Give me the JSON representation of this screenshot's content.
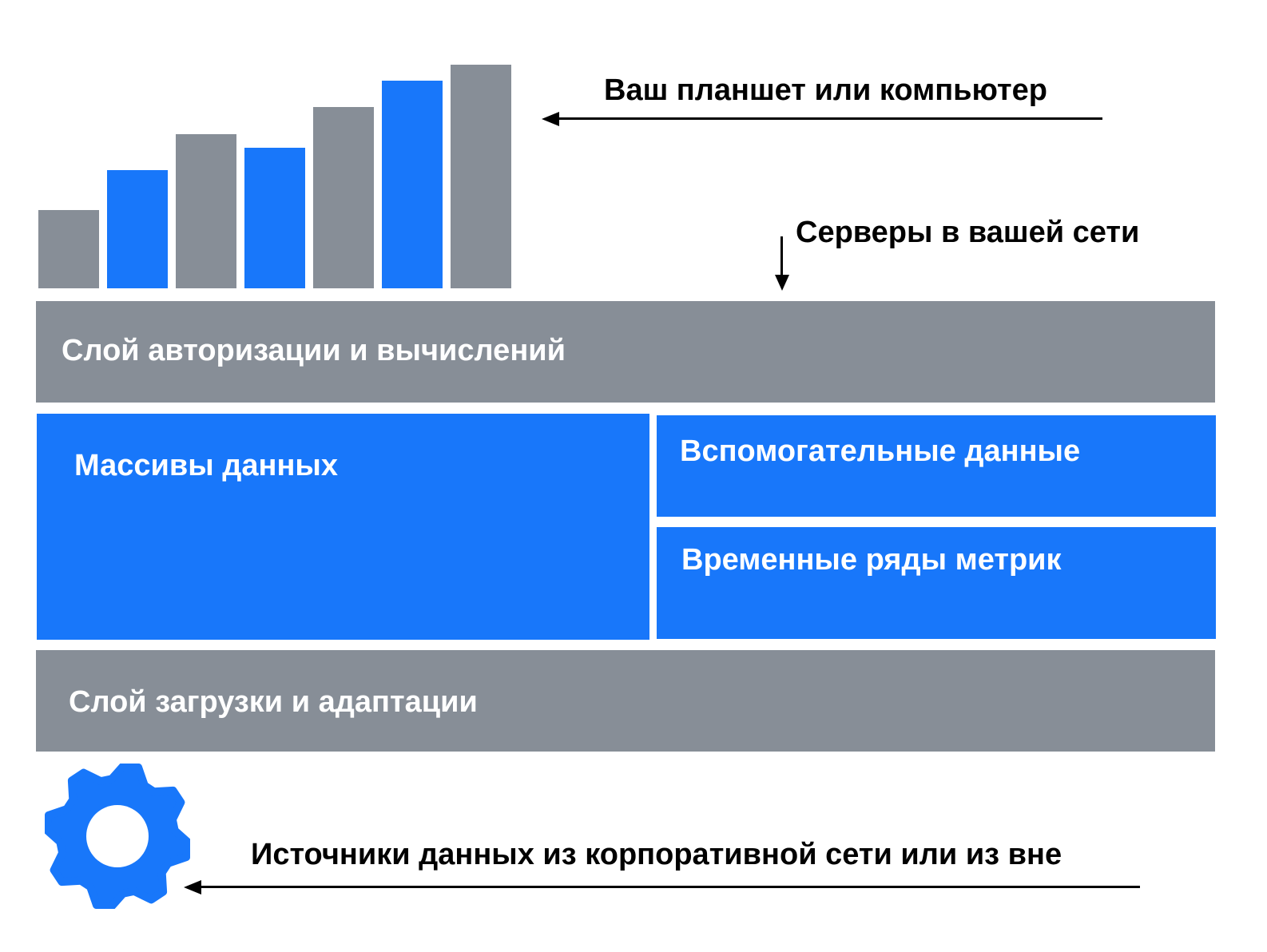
{
  "colors": {
    "gray": "#878e97",
    "blue": "#1877fa",
    "text_dark": "#000000",
    "text_light": "#ffffff"
  },
  "top_bars": {
    "icon": "bar-chart-icon",
    "bars": [
      {
        "level": 0.35,
        "color": "gray"
      },
      {
        "level": 0.53,
        "color": "blue"
      },
      {
        "level": 0.69,
        "color": "gray"
      },
      {
        "level": 0.63,
        "color": "blue"
      },
      {
        "level": 0.81,
        "color": "gray"
      },
      {
        "level": 0.93,
        "color": "blue"
      },
      {
        "level": 1.0,
        "color": "gray"
      }
    ]
  },
  "captions": {
    "client": "Ваш планшет или компьютер",
    "servers": "Серверы в вашей сети",
    "sources": "Источники данных из корпоративной сети или из вне"
  },
  "layers": {
    "auth": "Слой авторизации и вычислений",
    "arrays": "Массивы данных",
    "auxiliary": "Вспомогательные данные",
    "timeseries": "Временные ряды метрик",
    "ingest": "Слой загрузки и адаптации"
  },
  "bottom_icon": "gear-icon"
}
